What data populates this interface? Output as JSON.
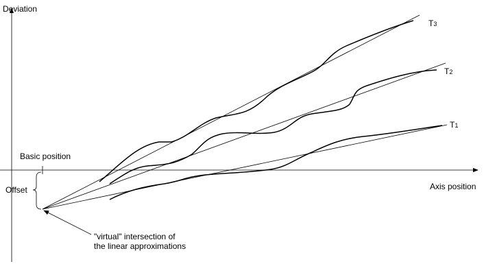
{
  "axes": {
    "y_label": "Deviation",
    "x_label": "Axis position"
  },
  "annotations": {
    "basic_position": "Basic position",
    "offset": "Offset",
    "intersection": [
      "\"virtual\" intersection of",
      "the linear approximations"
    ]
  },
  "curves": [
    {
      "letter": "T",
      "index": "3"
    },
    {
      "letter": "T",
      "index": "2"
    },
    {
      "letter": "T",
      "index": "1"
    }
  ]
}
